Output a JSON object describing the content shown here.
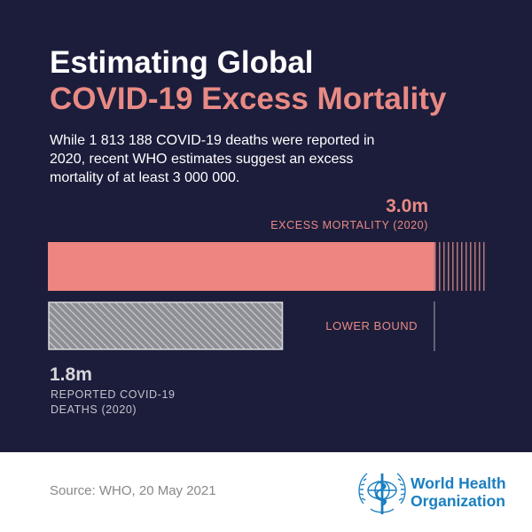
{
  "header": {
    "title_line1": "Estimating Global",
    "title_line2": "COVID-19 Excess Mortality",
    "intro": "While 1 813 188 COVID-19 deaths were reported in 2020, recent WHO estimates suggest an excess mortality of at least 3 000 000."
  },
  "chart_data": {
    "type": "bar",
    "scale_max": 3.4,
    "bars": [
      {
        "id": "excess",
        "value": 3.0,
        "range_max": 3.4,
        "value_label": "3.0m",
        "label": "EXCESS MORTALITY (2020)",
        "color": "#ee8580"
      },
      {
        "id": "reported",
        "value": 1.8,
        "value_label": "1.8m",
        "label_lines": [
          "REPORTED COVID-19",
          "DEATHS (2020)"
        ],
        "color": "#8e8e95"
      }
    ],
    "annotations": [
      {
        "text": "LOWER BOUND",
        "at_value": 3.0,
        "color": "#e88a84"
      }
    ]
  },
  "footer": {
    "source": "Source:  WHO, 20 May 2021",
    "org_line1": "World Health",
    "org_line2": "Organization"
  },
  "colors": {
    "background": "#1c1d3b",
    "accent": "#e88a84",
    "org_blue": "#1a7fc1"
  }
}
